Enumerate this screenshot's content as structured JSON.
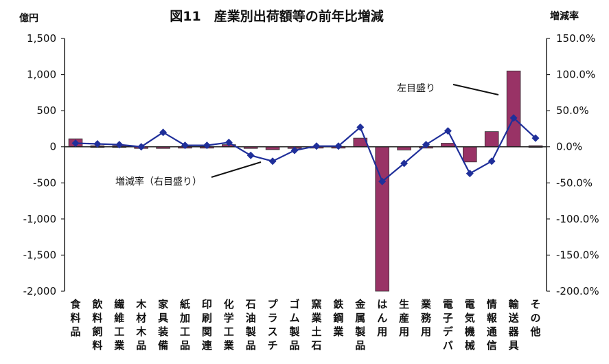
{
  "chart_data": {
    "type": "bar",
    "title": "図11　産業別出荷額等の前年比増減",
    "y_left_unit": "億円",
    "y_right_unit": "増減率",
    "left_ticks": [
      "1,500",
      "1,000",
      "500",
      "0",
      "-500",
      "-1,000",
      "-1,500",
      "-2,000"
    ],
    "right_ticks": [
      "150.0%",
      "100.0%",
      "50.0%",
      "0.0%",
      "-50.0%",
      "-100.0%",
      "-150.0%",
      "-200.0%"
    ],
    "ylim_left": [
      -2000,
      1500
    ],
    "ylim_right": [
      -200,
      150
    ],
    "categories": [
      "食料品",
      "飲料飼料",
      "繊維工業",
      "木材木品",
      "家具装備",
      "紙加工品",
      "印刷関連",
      "化学工業",
      "石油製品",
      "プラスチ",
      "ゴム製品",
      "窯業土石",
      "鉄鋼業",
      "金属製品",
      "はん用",
      "生産用",
      "業務用",
      "電子デバ",
      "電気機械",
      "情報通信",
      "輸送器具",
      "その他"
    ],
    "series": [
      {
        "kind": "bar",
        "axis": "left",
        "color": "#993366",
        "values": [
          110,
          15,
          15,
          -5,
          -8,
          5,
          5,
          30,
          -10,
          -40,
          -10,
          5,
          5,
          120,
          -2000,
          -45,
          5,
          50,
          -210,
          210,
          1050,
          15
        ]
      },
      {
        "kind": "line",
        "axis": "right",
        "color": "#1f2f9a",
        "values": [
          5,
          4,
          3,
          0,
          20,
          2,
          2,
          6,
          -12,
          -20,
          -5,
          1,
          1,
          27,
          -48,
          -23,
          3,
          22,
          -37,
          -20,
          40,
          12
        ]
      }
    ],
    "annotations": [
      {
        "text": "左目盛り"
      },
      {
        "text": "増減率（右目盛り）"
      }
    ],
    "grid": false
  }
}
